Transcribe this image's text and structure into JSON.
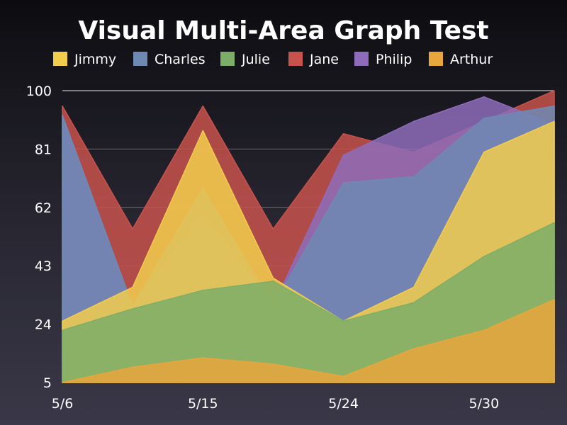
{
  "chart_data": {
    "type": "area",
    "title": "Visual Multi-Area Graph Test",
    "legend_placement": "top",
    "grid": true,
    "ylim": [
      5,
      100
    ],
    "yticks": [
      5,
      24,
      43,
      62,
      81,
      100
    ],
    "x": [
      "5/6",
      "5/9",
      "5/15",
      "5/18",
      "5/24",
      "5/27",
      "5/30",
      "6/2"
    ],
    "xtick_labels": [
      "5/6",
      "5/15",
      "5/24",
      "5/30"
    ],
    "xtick_indices": [
      0,
      2,
      4,
      6
    ],
    "series": [
      {
        "name": "Jane",
        "color": "#c8524c",
        "values": [
          95,
          55,
          95,
          55,
          86,
          80,
          90,
          100
        ]
      },
      {
        "name": "Philip",
        "color": "#8e6cba",
        "values": [
          92,
          30,
          60,
          30,
          79,
          90,
          98,
          89
        ]
      },
      {
        "name": "Charles",
        "color": "#6e8ab4",
        "values": [
          92,
          30,
          68,
          30,
          70,
          72,
          91,
          95
        ]
      },
      {
        "name": "Jimmy",
        "color": "#f2cc4c",
        "values": [
          25,
          36,
          87,
          39,
          25,
          36,
          80,
          90
        ]
      },
      {
        "name": "Julie",
        "color": "#7dae67",
        "values": [
          22,
          29,
          35,
          38,
          25,
          31,
          46,
          57
        ]
      },
      {
        "name": "Arthur",
        "color": "#e8a63c",
        "values": [
          5,
          10,
          13,
          11,
          7,
          16,
          22,
          32
        ]
      }
    ]
  },
  "legend": [
    {
      "name": "Jimmy",
      "color": "#f2cc4c"
    },
    {
      "name": "Charles",
      "color": "#6e8ab4"
    },
    {
      "name": "Julie",
      "color": "#7dae67"
    },
    {
      "name": "Jane",
      "color": "#c8524c"
    },
    {
      "name": "Philip",
      "color": "#8e6cba"
    },
    {
      "name": "Arthur",
      "color": "#e8a63c"
    }
  ]
}
